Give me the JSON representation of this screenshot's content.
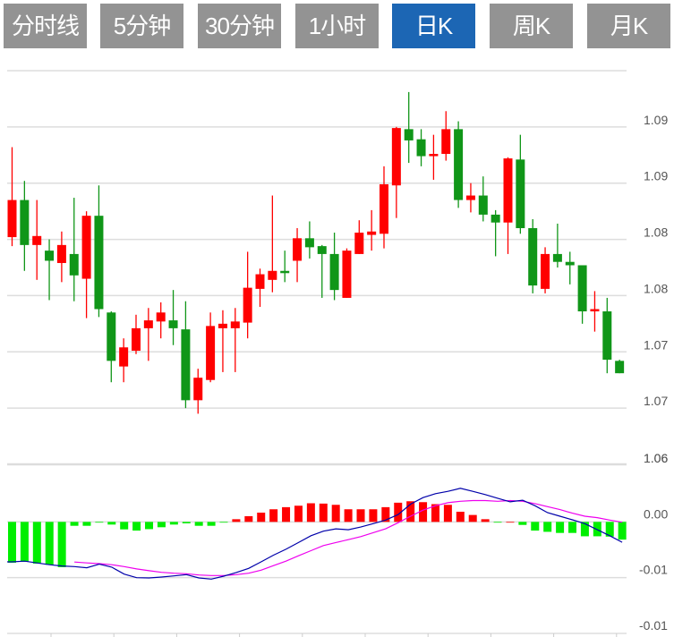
{
  "tabs": [
    {
      "label": "分时线",
      "active": false
    },
    {
      "label": "5分钟",
      "active": false
    },
    {
      "label": "30分钟",
      "active": false
    },
    {
      "label": "1小时",
      "active": false
    },
    {
      "label": "日K",
      "active": true
    },
    {
      "label": "周K",
      "active": false
    },
    {
      "label": "月K",
      "active": false
    }
  ],
  "colors": {
    "tab_bg": "#939393",
    "tab_active_bg": "#1c66b4",
    "up": "#ff0000",
    "down": "#109618",
    "hist_up": "#ff0000",
    "hist_down": "#00ee00",
    "dif": "#0000aa",
    "dea": "#ee00ee",
    "grid": "#dddddd"
  },
  "chart_data": [
    {
      "type": "candlestick",
      "ylim": [
        1.065,
        1.1
      ],
      "grid": true,
      "y_tick_labels": [
        "1.09",
        "1.09",
        "1.08",
        "1.08",
        "1.07",
        "1.07",
        "1.06"
      ],
      "y_ticks": [
        1.095,
        1.09,
        1.085,
        1.08,
        1.075,
        1.07,
        1.065
      ],
      "ohlc": [
        [
          1.0852,
          1.0932,
          1.0844,
          1.0885
        ],
        [
          1.0885,
          1.0902,
          1.0822,
          1.0845
        ],
        [
          1.0845,
          1.0885,
          1.0814,
          1.0853
        ],
        [
          1.084,
          1.085,
          1.0796,
          1.0831
        ],
        [
          1.0829,
          1.0857,
          1.0812,
          1.0845
        ],
        [
          1.0837,
          1.0887,
          1.0795,
          1.0818
        ],
        [
          1.0815,
          1.0875,
          1.078,
          1.0871
        ],
        [
          1.0871,
          1.0898,
          1.0781,
          1.0788
        ],
        [
          1.0785,
          1.0786,
          1.0723,
          1.0742
        ],
        [
          1.0737,
          1.0762,
          1.0723,
          1.0754
        ],
        [
          1.0751,
          1.0783,
          1.0748,
          1.0771
        ],
        [
          1.0771,
          1.0789,
          1.0742,
          1.0778
        ],
        [
          1.0777,
          1.0794,
          1.0762,
          1.0785
        ],
        [
          1.0778,
          1.0805,
          1.0756,
          1.0771
        ],
        [
          1.077,
          1.0795,
          1.07,
          1.0707
        ],
        [
          1.0707,
          1.0735,
          1.0695,
          1.0727
        ],
        [
          1.0725,
          1.0785,
          1.0723,
          1.0773
        ],
        [
          1.0771,
          1.0787,
          1.0732,
          1.0775
        ],
        [
          1.0771,
          1.0789,
          1.0732,
          1.0777
        ],
        [
          1.0776,
          1.0839,
          1.0762,
          1.0807
        ],
        [
          1.0806,
          1.0824,
          1.079,
          1.0819
        ],
        [
          1.0814,
          1.0889,
          1.0803,
          1.0822
        ],
        [
          1.0822,
          1.084,
          1.0812,
          1.082
        ],
        [
          1.0831,
          1.086,
          1.0812,
          1.0851
        ],
        [
          1.0851,
          1.0866,
          1.0833,
          1.0843
        ],
        [
          1.0844,
          1.0845,
          1.0798,
          1.0837
        ],
        [
          1.0837,
          1.0856,
          1.0796,
          1.0805
        ],
        [
          1.0798,
          1.0842,
          1.0798,
          1.084
        ],
        [
          1.0837,
          1.0867,
          1.0837,
          1.0856
        ],
        [
          1.0854,
          1.0876,
          1.084,
          1.0857
        ],
        [
          1.0855,
          1.0915,
          1.0842,
          1.0899
        ],
        [
          1.0898,
          1.095,
          1.0869,
          1.0949
        ],
        [
          1.0948,
          1.0981,
          1.0918,
          1.0938
        ],
        [
          1.0939,
          1.0948,
          1.0915,
          1.0924
        ],
        [
          1.0924,
          1.0943,
          1.0903,
          1.0926
        ],
        [
          1.0926,
          1.0964,
          1.092,
          1.0948
        ],
        [
          1.0948,
          1.0955,
          1.0878,
          1.0885
        ],
        [
          1.0885,
          1.09,
          1.0874,
          1.0889
        ],
        [
          1.0889,
          1.0906,
          1.0866,
          1.0872
        ],
        [
          1.0872,
          1.0876,
          1.0835,
          1.0865
        ],
        [
          1.0865,
          1.0923,
          1.0837,
          1.0922
        ],
        [
          1.0921,
          1.0943,
          1.0855,
          1.086
        ],
        [
          1.086,
          1.0868,
          1.0802,
          1.0809
        ],
        [
          1.0806,
          1.0843,
          1.0802,
          1.0837
        ],
        [
          1.0837,
          1.0864,
          1.0825,
          1.083
        ],
        [
          1.083,
          1.0839,
          1.081,
          1.0827
        ],
        [
          1.0827,
          1.0827,
          1.0775,
          1.0786
        ],
        [
          1.0786,
          1.0804,
          1.0768,
          1.0788
        ],
        [
          1.0786,
          1.0798,
          1.0731,
          1.0743
        ],
        [
          1.0742,
          1.0743,
          1.0731,
          1.0731
        ]
      ]
    },
    {
      "type": "macd",
      "ylim": [
        -0.01,
        0.005
      ],
      "grid": true,
      "y_tick_labels": [
        "0.00",
        "-0.01",
        "-0.01"
      ],
      "y_ticks": [
        0,
        -0.005,
        -0.01
      ],
      "top_label": "1.06",
      "histogram": [
        -0.00366,
        -0.00358,
        -0.00374,
        -0.00384,
        -0.00406,
        -0.00035,
        -0.00035,
        -5e-05,
        -0.00024,
        -0.00067,
        -0.00078,
        -0.00065,
        -0.00048,
        -0.00024,
        -0.00013,
        -0.00035,
        -0.00035,
        -5e-05,
        0.00024,
        0.00051,
        0.00083,
        0.00113,
        0.00132,
        0.00145,
        0.00167,
        0.00164,
        0.00153,
        0.00113,
        0.00113,
        0.00113,
        0.00132,
        0.00172,
        0.00185,
        0.00177,
        0.00159,
        0.00153,
        0.00091,
        0.00062,
        0.00024,
        -3e-05,
        0,
        -0.00027,
        -0.00078,
        -0.00089,
        -0.00099,
        -0.00099,
        -0.00129,
        -0.00129,
        -0.00132,
        -0.00159
      ],
      "dif": [
        -0.00358,
        -0.00352,
        -0.00368,
        -0.00384,
        -0.00395,
        -0.00401,
        -0.00411,
        -0.00379,
        -0.00406,
        -0.00468,
        -0.005,
        -0.00503,
        -0.00495,
        -0.00484,
        -0.00473,
        -0.00503,
        -0.00513,
        -0.00487,
        -0.00454,
        -0.00417,
        -0.00358,
        -0.00298,
        -0.00245,
        -0.00185,
        -0.00124,
        -0.00083,
        -0.00062,
        -0.0007,
        -0.00046,
        -0.00016,
        0.00016,
        0.00065,
        0.00159,
        0.00218,
        0.00253,
        0.00274,
        0.00301,
        0.00274,
        0.00245,
        0.00212,
        0.0018,
        0.00194,
        0.00145,
        0.00083,
        0.00051,
        0.00019,
        -0.00016,
        -0.0007,
        -0.00124,
        -0.00183
      ],
      "dea": [
        null,
        null,
        null,
        null,
        null,
        -0.0036,
        -0.00368,
        -0.00374,
        -0.00384,
        -0.00401,
        -0.00422,
        -0.00438,
        -0.00452,
        -0.0046,
        -0.00465,
        -0.00476,
        -0.00481,
        -0.00481,
        -0.00473,
        -0.0046,
        -0.00433,
        -0.00392,
        -0.00352,
        -0.00304,
        -0.00258,
        -0.00212,
        -0.00185,
        -0.00159,
        -0.00132,
        -0.00097,
        -0.00062,
        -8e-05,
        0.00051,
        0.00105,
        0.00145,
        0.00172,
        0.00185,
        0.00191,
        0.00191,
        0.00185,
        0.00191,
        0.00185,
        0.00164,
        0.00137,
        0.0011,
        0.00078,
        0.00051,
        0.00038,
        0.00016,
        -3e-05
      ]
    }
  ]
}
